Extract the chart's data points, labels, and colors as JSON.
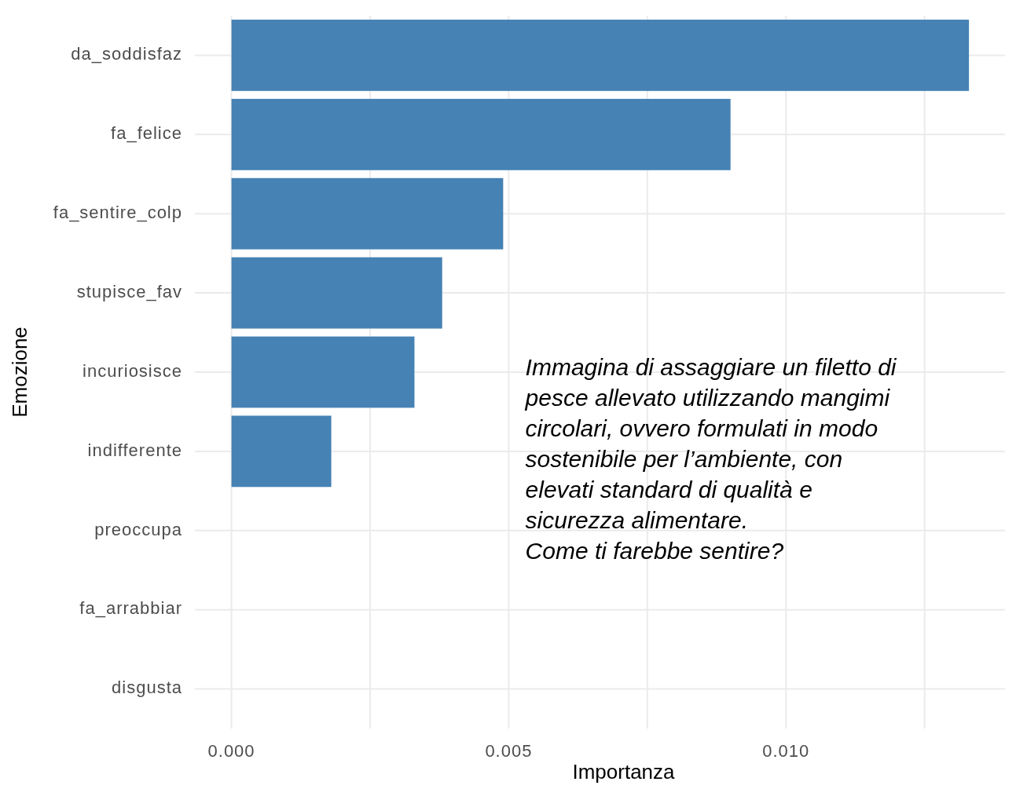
{
  "chart_data": {
    "type": "bar",
    "orientation": "horizontal",
    "xlabel": "Importanza",
    "ylabel": "Emozione",
    "categories": [
      "da_soddisfaz",
      "fa_felice",
      "fa_sentire_colp",
      "stupisce_fav",
      "incuriosisce",
      "indifferente",
      "preoccupa",
      "fa_arrabbiar",
      "disgusta"
    ],
    "values": [
      0.0133,
      0.009,
      0.0049,
      0.0038,
      0.0033,
      0.0018,
      0,
      0,
      0
    ],
    "color": "#4682b4",
    "xlim": [
      -0.00066,
      0.01395
    ],
    "xticks": [
      {
        "value": 0,
        "label": "0.000"
      },
      {
        "value": 0.0025,
        "label": null
      },
      {
        "value": 0.005,
        "label": "0.005"
      },
      {
        "value": 0.0075,
        "label": null
      },
      {
        "value": 0.01,
        "label": "0.010"
      },
      {
        "value": 0.0125,
        "label": null
      }
    ],
    "grid": true,
    "annotations": [
      "Immagina di assaggiare un filetto di pesce allevato utilizzando mangimi circolari, ovvero formulati in modo sostenibile per l’ambiente, con elevati standard di qualità e sicurezza alimentare.\nCome ti farebbe sentire?"
    ]
  }
}
